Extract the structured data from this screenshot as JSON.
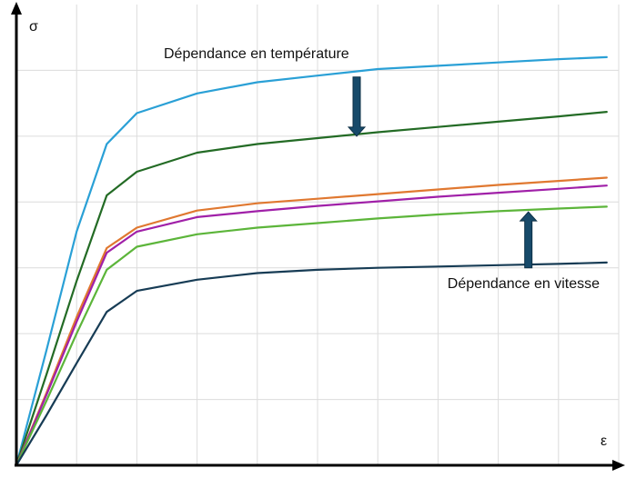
{
  "chart_data": {
    "type": "line",
    "title": "",
    "xlabel": "ε",
    "ylabel": "σ",
    "grid": true,
    "xlim": [
      0,
      10
    ],
    "ylim": [
      0,
      7
    ],
    "x_grid": [
      1,
      2,
      3,
      4,
      5,
      6,
      7,
      8,
      9,
      10
    ],
    "y_grid": [
      1,
      2,
      3,
      4,
      5,
      6
    ],
    "x": [
      0,
      0.5,
      1,
      1.5,
      2,
      3,
      4,
      5,
      6,
      7,
      8,
      9,
      9.8
    ],
    "series": [
      {
        "color": "#2aa0d6",
        "values": [
          0,
          1.75,
          3.55,
          4.88,
          5.35,
          5.65,
          5.82,
          5.92,
          6.02,
          6.07,
          6.12,
          6.17,
          6.2
        ]
      },
      {
        "color": "#236b25",
        "values": [
          0,
          1.38,
          2.8,
          4.1,
          4.46,
          4.75,
          4.88,
          4.97,
          5.06,
          5.14,
          5.22,
          5.3,
          5.37
        ]
      },
      {
        "color": "#e07830",
        "values": [
          0,
          1.1,
          2.25,
          3.3,
          3.61,
          3.87,
          3.98,
          4.05,
          4.12,
          4.19,
          4.26,
          4.32,
          4.37
        ]
      },
      {
        "color": "#a020a8",
        "values": [
          0,
          1.07,
          2.18,
          3.23,
          3.55,
          3.77,
          3.86,
          3.94,
          4.01,
          4.08,
          4.14,
          4.2,
          4.25
        ]
      },
      {
        "color": "#5cb53a",
        "values": [
          0,
          0.98,
          2.0,
          2.97,
          3.32,
          3.51,
          3.61,
          3.68,
          3.75,
          3.81,
          3.86,
          3.9,
          3.93
        ]
      },
      {
        "color": "#173c55",
        "values": [
          0,
          0.76,
          1.55,
          2.33,
          2.65,
          2.82,
          2.92,
          2.97,
          3.0,
          3.02,
          3.04,
          3.06,
          3.08
        ]
      }
    ],
    "annotations": [
      {
        "text": "Dépendance en température",
        "arrow": "down",
        "x": 5.65,
        "y_from": 5.9,
        "y_to": 5.0
      },
      {
        "text": "Dépendance en vitesse",
        "arrow": "up",
        "x": 8.5,
        "y_from": 3.0,
        "y_to": 3.85
      }
    ],
    "arrow_color": "#174a6a"
  }
}
